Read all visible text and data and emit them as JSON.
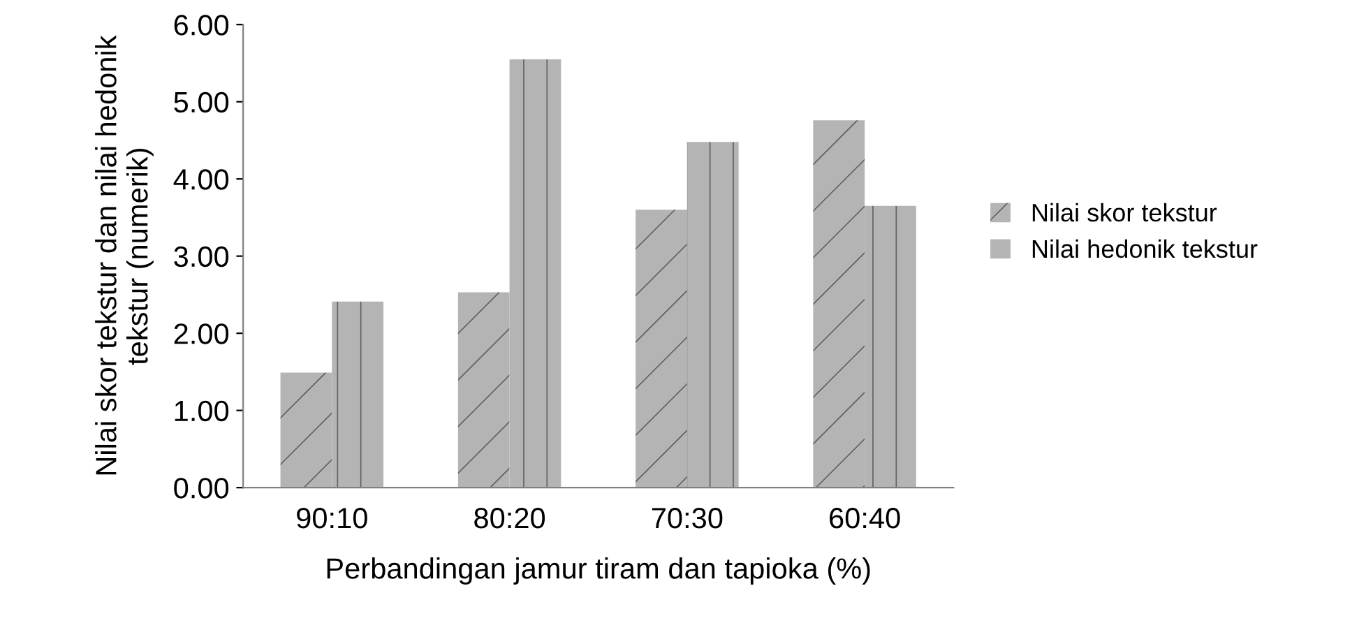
{
  "chart_data": {
    "type": "bar",
    "xlabel": "Perbandingan jamur tiram dan tapioka (%)",
    "ylabel": "Nilai skor tekstur dan nilai hedonik tekstur (numerik)",
    "categories": [
      "90:10",
      "80:20",
      "70:30",
      "60:40"
    ],
    "series": [
      {
        "name": "Nilai skor tekstur",
        "color": "#b4b4b4",
        "values": [
          1.49,
          2.53,
          3.6,
          4.76
        ]
      },
      {
        "name": "Nilai hedonik tekstur",
        "color": "#b4b4b4",
        "values": [
          2.41,
          5.55,
          4.48,
          3.65
        ]
      }
    ],
    "ylim": [
      0,
      6
    ],
    "yticks": [
      {
        "value": 0,
        "label": "0.00"
      },
      {
        "value": 1,
        "label": "1.00"
      },
      {
        "value": 2,
        "label": "2.00"
      },
      {
        "value": 3,
        "label": "3.00"
      },
      {
        "value": 4,
        "label": "4.00"
      },
      {
        "value": 5,
        "label": "5.00"
      },
      {
        "value": 6,
        "label": "6.00"
      }
    ],
    "grid": false,
    "legend": "right"
  }
}
